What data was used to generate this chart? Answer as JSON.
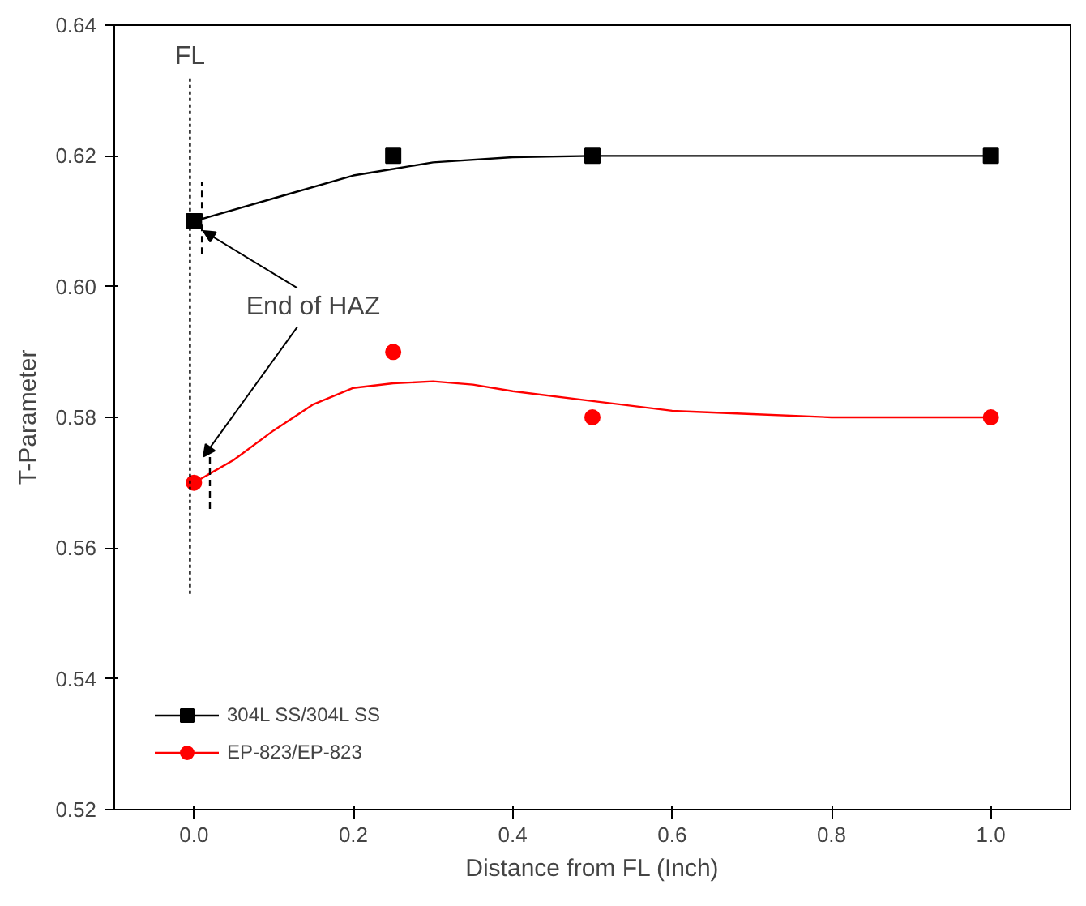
{
  "chart_data": {
    "type": "scatter",
    "xlabel": "Distance from FL (Inch)",
    "ylabel": "T-Parameter",
    "xlim": [
      -0.1,
      1.1
    ],
    "ylim": [
      0.52,
      0.64
    ],
    "xticks": [
      {
        "value": 0,
        "label": "0.0"
      },
      0.2,
      0.4,
      0.6,
      0.8,
      {
        "value": 1,
        "label": "1.0"
      }
    ],
    "yticks": [
      {
        "value": 0.52,
        "label": "0.52"
      },
      {
        "value": 0.54,
        "label": "0.54"
      },
      {
        "value": 0.56,
        "label": "0.56"
      },
      {
        "value": 0.58,
        "label": "0.58"
      },
      {
        "value": 0.6,
        "label": "0.60"
      },
      {
        "value": 0.62,
        "label": "0.62"
      },
      {
        "value": 0.64,
        "label": "0.64"
      }
    ],
    "grid": false,
    "legend": "bottom left",
    "series": [
      {
        "name": "304L SS/304L SS",
        "marker": "square",
        "color": "#000000",
        "x": [
          0,
          0.25,
          0.5,
          1.0
        ],
        "values": [
          0.61,
          0.62,
          0.62,
          0.62
        ]
      },
      {
        "name": "EP-823/EP-823",
        "marker": "circle",
        "color": "#ff0000",
        "x": [
          0,
          0.25,
          0.5,
          1.0
        ],
        "values": [
          0.57,
          0.59,
          0.58,
          0.58
        ]
      },
      {
        "type": "line",
        "color": "#000000",
        "line_style": "solid",
        "x": [
          0,
          0.1,
          0.2,
          0.25,
          0.3,
          0.4,
          0.5,
          0.6,
          0.8,
          1.0
        ],
        "values": [
          0.61,
          0.6135,
          0.617,
          0.618,
          0.619,
          0.6198,
          0.62,
          0.62,
          0.62,
          0.62
        ]
      },
      {
        "type": "line",
        "color": "#ff0000",
        "line_style": "solid",
        "x": [
          0,
          0.05,
          0.1,
          0.15,
          0.2,
          0.25,
          0.3,
          0.35,
          0.4,
          0.5,
          0.6,
          0.7,
          0.8,
          1.0
        ],
        "values": [
          0.57,
          0.5735,
          0.578,
          0.582,
          0.5845,
          0.5852,
          0.5855,
          0.585,
          0.584,
          0.5825,
          0.581,
          0.5805,
          0.58,
          0.58
        ]
      },
      {
        "type": "line",
        "color": "#000000",
        "line_style": "dotted",
        "x": [
          -0.005,
          -0.005
        ],
        "values": [
          0.553,
          0.632
        ]
      },
      {
        "type": "line",
        "color": "#000000",
        "line_style": "dashed",
        "x": [
          0.01,
          0.01
        ],
        "values": [
          0.605,
          0.616
        ]
      },
      {
        "type": "line",
        "color": "#000000",
        "line_style": "dashed",
        "x": [
          0.02,
          0.02
        ],
        "values": [
          0.566,
          0.575
        ]
      }
    ],
    "annotations": [
      {
        "text": "FL",
        "x": -0.005,
        "y": 0.633
      },
      {
        "text": "End of HAZ",
        "x": 0,
        "y": 0.61
      }
    ]
  }
}
